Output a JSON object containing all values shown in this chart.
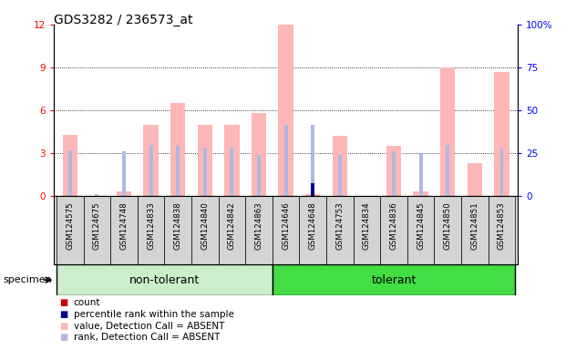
{
  "title": "GDS3282 / 236573_at",
  "samples": [
    "GSM124575",
    "GSM124675",
    "GSM124748",
    "GSM124833",
    "GSM124838",
    "GSM124840",
    "GSM124842",
    "GSM124863",
    "GSM124646",
    "GSM124648",
    "GSM124753",
    "GSM124834",
    "GSM124836",
    "GSM124845",
    "GSM124850",
    "GSM124851",
    "GSM124853"
  ],
  "n_non_tolerant": 8,
  "n_tolerant": 9,
  "pink_bars": [
    4.3,
    0.0,
    0.3,
    5.0,
    6.5,
    5.0,
    5.0,
    5.8,
    12.0,
    0.1,
    4.2,
    0.0,
    3.5,
    0.3,
    9.0,
    2.3,
    8.7
  ],
  "blue_bars": [
    3.2,
    0.1,
    3.1,
    3.6,
    3.5,
    3.4,
    3.4,
    2.9,
    5.0,
    5.0,
    2.9,
    0.0,
    3.1,
    3.0,
    3.6,
    0.0,
    3.4
  ],
  "red_bars": [
    0.0,
    0.0,
    0.0,
    0.0,
    0.0,
    0.0,
    0.0,
    0.0,
    0.0,
    0.5,
    0.0,
    0.0,
    0.0,
    0.0,
    0.0,
    0.0,
    0.0
  ],
  "dark_blue_bars": [
    0.0,
    0.0,
    0.0,
    0.0,
    0.0,
    0.0,
    0.0,
    0.0,
    0.0,
    0.9,
    0.0,
    0.0,
    0.0,
    0.0,
    0.0,
    0.0,
    0.0
  ],
  "ylim_left": [
    0,
    12
  ],
  "ylim_right": [
    0,
    100
  ],
  "yticks_left": [
    0,
    3,
    6,
    9,
    12
  ],
  "yticks_right": [
    0,
    25,
    50,
    75,
    100
  ],
  "color_pink": "#FFB6B6",
  "color_lightblue": "#B0B8E0",
  "color_red": "#CC0000",
  "color_darkblue": "#00008B",
  "color_group_light": "#CCEECC",
  "color_group_dark": "#44DD44",
  "color_gray_bg": "#D4D4D4",
  "bar_width": 0.55,
  "thin_bar_width": 0.13
}
